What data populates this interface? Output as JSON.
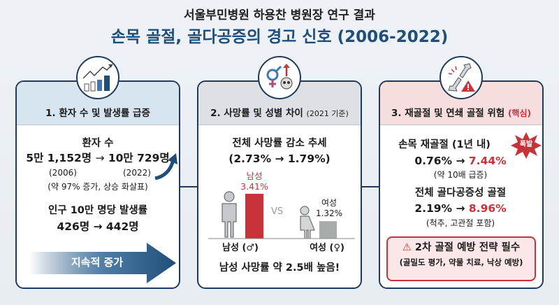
{
  "title": {
    "line1": "서울부민병원 하용찬 병원장 연구 결과",
    "line2": "손목 골절, 골다공증의 경고 신호 (2006-2022)"
  },
  "colors": {
    "navy": "#1f3a5a",
    "title_blue": "#1f4e79",
    "red": "#c8323a",
    "female_gray": "#a9abab"
  },
  "panel1": {
    "icon": "growth-chart-people-icon",
    "heading": "1. 환자 수 및 발생률 급증",
    "patients_label": "환자 수",
    "patients_from": "5만 1,152명",
    "arrow": "→",
    "patients_to": "10만 729명",
    "year_from": "(2006)",
    "year_to": "(2022)",
    "note": "(약 97% 증가, 상승 화살표)",
    "incidence_label": "인구 10만 명당 발생률",
    "incidence_value": "426명 → 442명",
    "banner": "지속적 증가"
  },
  "panel2": {
    "icon": "gender-skull-icon",
    "heading": "2. 사망률 및 성별 차이",
    "heading_sub": "(2021 기준)",
    "trend_label": "전체 사망률 감소 추세",
    "trend_value": "(2.73% → 1.79%)",
    "male_label": "남성",
    "male_value": "3.41%",
    "male_pct": 3.41,
    "vs": "VS",
    "female_label": "여성",
    "female_value": "1.32%",
    "female_pct": 1.32,
    "male_axis": "남성 (♂)",
    "female_axis": "여성 (♀)",
    "conclusion": "남성 사망률 약 2.5배 높음!"
  },
  "panel3": {
    "icon": "broken-bone-warning-icon",
    "heading": "3. 재골절 및 연쇄 골절 위험",
    "heading_tag": "(핵심)",
    "refracture_label": "손목 재골절 (1년 내)",
    "burst": "폭발",
    "refracture_from": "0.76% →",
    "refracture_to": "7.44%",
    "refracture_note": "(약 10배 급증)",
    "osteo_label": "전체 골다공증성 골절",
    "osteo_from": "2.19% →",
    "osteo_to": "8.96%",
    "osteo_note": "(척추, 고관절 포함)",
    "alert_title": "2차 골절 예방 전략 필수",
    "alert_sub": "(골밀도 평가, 약물 치료, 낙상 예방)"
  }
}
